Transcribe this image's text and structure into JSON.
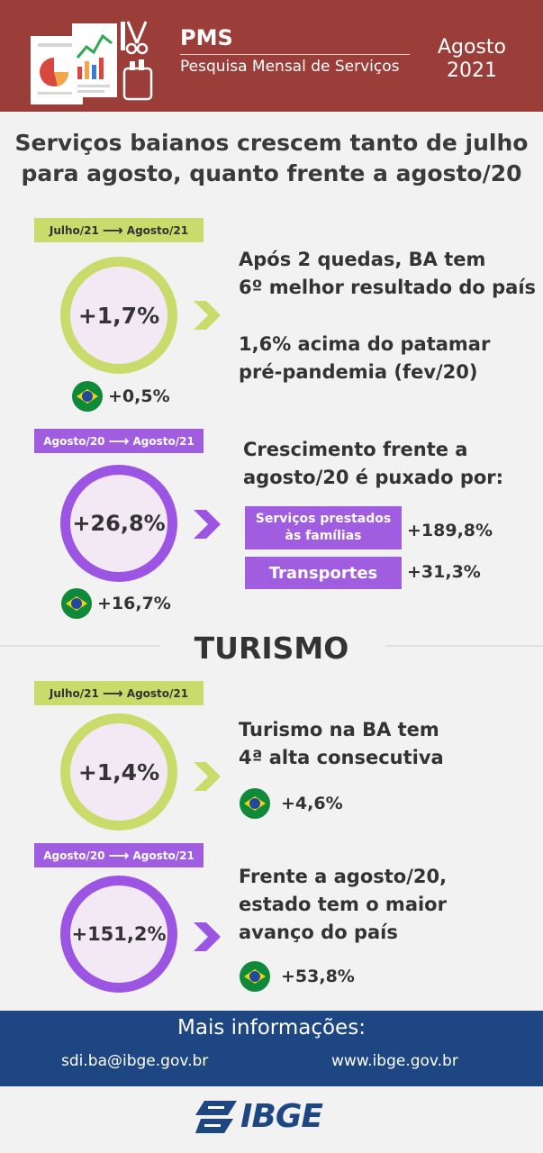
{
  "header": {
    "title": "PMS",
    "subtitle": "Pesquisa Mensal de Serviços",
    "month": "Agosto",
    "year": "2021",
    "color": "#9b3d39"
  },
  "headline": {
    "line1": "Serviços baianos crescem tanto de julho",
    "line2": "para agosto, quanto frente a agosto/20"
  },
  "block1": {
    "tag_from": "Julho/21",
    "tag_to": "Agosto/21",
    "value": "+1,7%",
    "brazil": "+0,5%",
    "text": [
      "Após 2 quedas, BA tem",
      "6º melhor resultado do país",
      "1,6% acima do patamar",
      "pré-pandemia (fev/20)"
    ]
  },
  "block2": {
    "tag_from": "Agosto/20",
    "tag_to": "Agosto/21",
    "value": "+26,8%",
    "brazil": "+16,7%",
    "text": [
      "Crescimento frente a",
      "agosto/20 é puxado por:"
    ],
    "drivers": [
      {
        "line1": "Serviços prestados",
        "line2": "às famílias",
        "value": "+189,8%"
      },
      {
        "label": "Transportes",
        "value": "+31,3%"
      }
    ]
  },
  "section": "TURISMO",
  "block3": {
    "tag_from": "Julho/21",
    "tag_to": "Agosto/21",
    "value": "+1,4%",
    "brazil": "+4,6%",
    "text": [
      "Turismo na BA tem",
      "4ª alta consecutiva"
    ]
  },
  "block4": {
    "tag_from": "Agosto/20",
    "tag_to": "Agosto/21",
    "value": "+151,2%",
    "brazil": "+53,8%",
    "text": [
      "Frente a agosto/20,",
      "estado tem o maior",
      "avanço do país"
    ]
  },
  "footer": {
    "more": "Mais informações:",
    "email": "sdi.ba@ibge.gov.br",
    "site": "www.ibge.gov.br"
  },
  "logo": "IBGE",
  "colors": {
    "green": "#c9dc6b",
    "purple": "#9c55e3",
    "navy": "#1d4682"
  }
}
